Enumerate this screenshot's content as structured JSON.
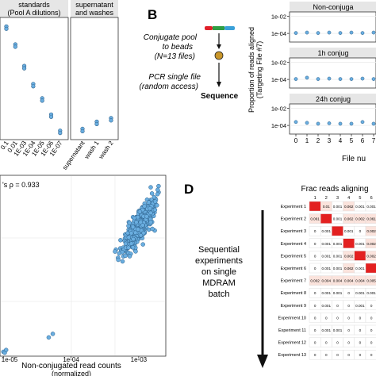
{
  "panelA": {
    "strip_standards": [
      "standards",
      "(Pool A dilutions)"
    ],
    "strip_supernatant": [
      "supernatant",
      "and washes"
    ],
    "x_ticks_standards": [
      "0.1",
      "0.01",
      "1E-03",
      "1E-04",
      "1E-05",
      "1E-06",
      "1E-07"
    ],
    "x_ticks_supernatant": [
      "supernatant",
      "wash 1",
      "wash 2"
    ]
  },
  "panelB": {
    "letter": "B",
    "step1": [
      "Conjugate pool",
      "to beads",
      "(N=13 files)"
    ],
    "step2": [
      "PCR single file",
      "(random access)"
    ],
    "step3": "Sequence",
    "ylabel": [
      "Proportion of reads aligned",
      "(Targeting File #7)"
    ],
    "facets": [
      "Non-conjuga",
      "1h conjug",
      "24h conjug"
    ],
    "y_ticks": [
      "1e-02",
      "1e-04"
    ],
    "x_ticks": [
      "0",
      "1",
      "2",
      "3",
      "4",
      "5",
      "6",
      "7"
    ],
    "xlabel": "File nu",
    "colors": {
      "bead_stack": [
        "#e0202a",
        "#2f9e44",
        "#3aa0d8"
      ],
      "bead": "#c9962a"
    }
  },
  "panelC": {
    "annotation": "'s ρ = 0.933",
    "x_ticks": [
      "1e-05",
      "1e-04",
      "1e-03"
    ],
    "xlabel": [
      "Non-conjugated read counts",
      "(normalized)"
    ],
    "point_color": "#6aaee0"
  },
  "panelD": {
    "letter": "D",
    "title": "Frac reads aligning",
    "side_label": [
      "Sequential",
      "experiments",
      "on single",
      "MDRAM",
      "batch"
    ],
    "col_header": [
      "1",
      "2",
      "3",
      "4",
      "5",
      "6",
      "7"
    ],
    "rows": [
      {
        "label": "Experiment 1",
        "cells": [
          "",
          "0.01",
          "0.001",
          "0.062",
          "0.001",
          "0.001",
          "0.001"
        ]
      },
      {
        "label": "Experiment 2",
        "cells": [
          "0.061",
          "",
          "0.001",
          "0.062",
          "0.002",
          "0.061",
          "0.1"
        ]
      },
      {
        "label": "Experiment 3",
        "cells": [
          "0",
          "0.001",
          "",
          "0.001",
          "0",
          "0.002",
          "0.06"
        ]
      },
      {
        "label": "Experiment 4",
        "cells": [
          "0",
          "0.001",
          "0.001",
          "",
          "0.001",
          "0.002",
          "0.001"
        ]
      },
      {
        "label": "Experiment 5",
        "cells": [
          "0",
          "0.001",
          "0.001",
          "0.002",
          "",
          "0.002",
          "0.061"
        ]
      },
      {
        "label": "Experiment 6",
        "cells": [
          "0",
          "0.001",
          "0.001",
          "0.062",
          "0.001",
          "",
          "0.001"
        ]
      },
      {
        "label": "Experiment 7",
        "cells": [
          "0.002",
          "0.004",
          "0.004",
          "0.004",
          "0.004",
          "0.005",
          ""
        ]
      },
      {
        "label": "Experiment 8",
        "cells": [
          "0",
          "0.001",
          "0.001",
          "0",
          "0.001",
          "0.001",
          "0.001"
        ]
      },
      {
        "label": "Experiment 9",
        "cells": [
          "0",
          "0.001",
          "0",
          "0",
          "0.001",
          "0",
          "0.001"
        ]
      },
      {
        "label": "Experiment 10",
        "cells": [
          "0",
          "0",
          "0",
          "0",
          "0",
          "0",
          "0"
        ]
      },
      {
        "label": "Experiment 11",
        "cells": [
          "0",
          "0.001",
          "0.001",
          "0",
          "0",
          "0",
          "0.001"
        ]
      },
      {
        "label": "Experiment 12",
        "cells": [
          "0",
          "0",
          "0",
          "0",
          "0",
          "0",
          "0"
        ]
      },
      {
        "label": "Experiment 13",
        "cells": [
          "0",
          "0",
          "0",
          "0",
          "0",
          "0",
          "0"
        ]
      }
    ],
    "colors": {
      "diagonal": "#e32020",
      "light": "#fbe3dc"
    }
  },
  "chart_data": [
    {
      "type": "scatter",
      "panel": "A",
      "facets": [
        "standards (Pool A dilutions)",
        "supernatant and washes"
      ],
      "categories_standards": [
        "0.1",
        "0.01",
        "1E-03",
        "1E-04",
        "1E-05",
        "1E-06",
        "1E-07"
      ],
      "categories_supernatant": [
        "supernatant",
        "wash 1",
        "wash 2"
      ],
      "y_log_standards": [
        -0.3,
        -0.8,
        -1.4,
        -1.9,
        -2.3,
        -2.75,
        -3.2
      ],
      "y_log_supernatant": [
        -3.15,
        -2.95,
        -2.85
      ]
    },
    {
      "type": "scatter",
      "panel": "B",
      "facets": [
        "Non-conjuga",
        "1h conjug",
        "24h conjug"
      ],
      "x": [
        0,
        1,
        2,
        3,
        4,
        5,
        6,
        7
      ],
      "series": [
        {
          "facet": "Non-conjuga",
          "y_log10": [
            -3.95,
            -3.9,
            -3.95,
            -3.9,
            -3.95,
            -3.9,
            -3.95,
            -3.9
          ]
        },
        {
          "facet": "1h conjug",
          "y_log10": [
            -3.95,
            -3.8,
            -3.95,
            -3.9,
            -3.95,
            -3.95,
            -3.9,
            -3.95
          ]
        },
        {
          "facet": "24h conjug",
          "y_log10": [
            -3.6,
            -3.7,
            -3.8,
            -3.75,
            -3.8,
            -3.8,
            -3.6,
            -3.8
          ]
        }
      ],
      "ylim_log10": [
        -5,
        -1.5
      ],
      "y_scale": "log"
    },
    {
      "type": "scatter",
      "panel": "C",
      "x_scale": "log",
      "xlim_log10": [
        -5.05,
        -2.6
      ],
      "annotation": "'s ρ = 0.933",
      "cluster": {
        "x_center_log10": -3.0,
        "y_center": 0.72,
        "note": "dense cluster of ~500 points, approximate"
      },
      "outliers": [
        [
          -4.27,
          0.12
        ],
        [
          -4.33,
          0.1
        ],
        [
          -5.0,
          0.02
        ],
        [
          -4.98,
          0.015
        ],
        [
          -4.96,
          0.03
        ]
      ]
    },
    {
      "type": "heatmap",
      "panel": "D",
      "title": "Frac reads aligning",
      "note": "13 experiment rows; diagonal cells (experiment i, file i) are highest"
    }
  ]
}
